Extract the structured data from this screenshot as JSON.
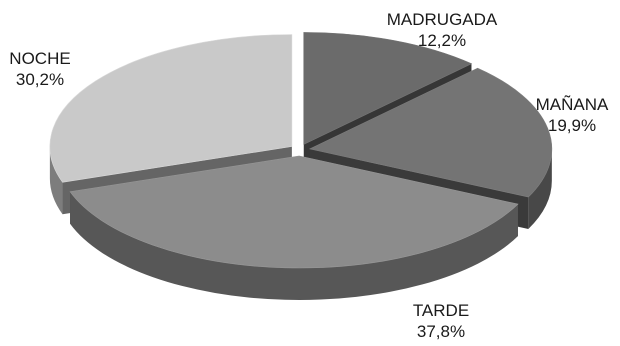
{
  "chart_data": {
    "type": "pie",
    "style": "3d-exploded",
    "colors_note": "grayscale",
    "slices": [
      {
        "label": "MADRUGADA",
        "value_label": "12,2%",
        "value": 12.2,
        "color": "#6b6b6b"
      },
      {
        "label": "MAÑANA",
        "value_label": "19,9%",
        "value": 19.9,
        "color": "#747474"
      },
      {
        "label": "TARDE",
        "value_label": "37,8%",
        "value": 37.8,
        "color": "#8c8c8c"
      },
      {
        "label": "NOCHE",
        "value_label": "30,2%",
        "value": 30.2,
        "color": "#c9c9c9"
      }
    ]
  }
}
